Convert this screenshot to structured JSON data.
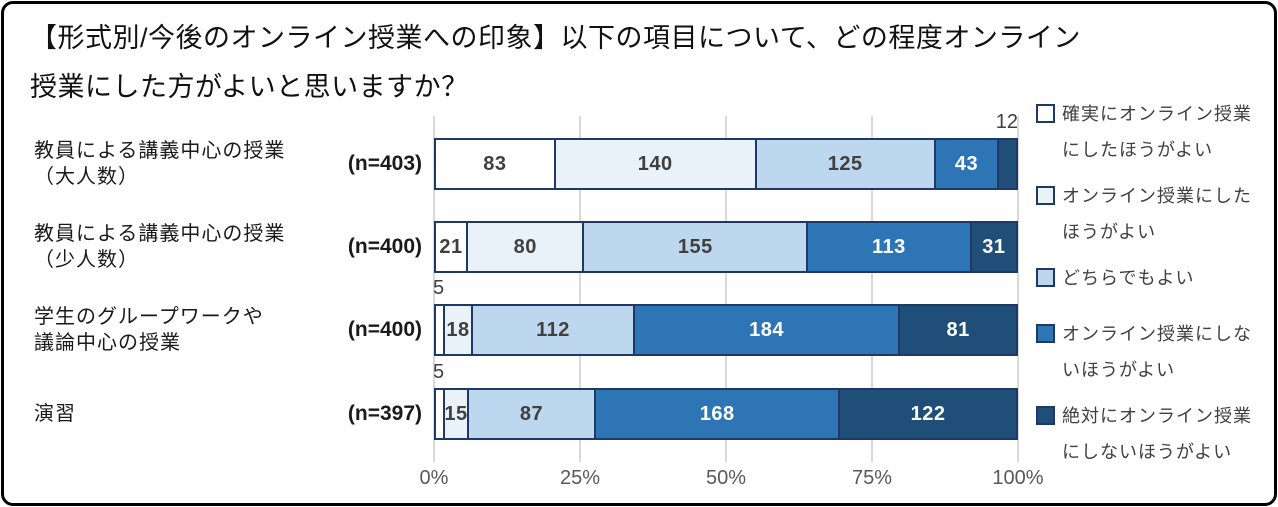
{
  "title": {
    "text": "【形式別/今後のオンライン授業への印象】以下の項目について、どの程度オンライン\n授業にした方がよいと思いますか？"
  },
  "colors": {
    "bar_border": "#1F3864",
    "gridline": "#D9D9D9",
    "value_label_dark": "#404040",
    "value_label_light": "#FFFFFF",
    "axis_text": "#595959",
    "title_text": "#111111",
    "category_text": "#1A1A1A",
    "legend_text": "#404040",
    "frame_border": "#000000"
  },
  "legend": {
    "items": [
      {
        "label": "確実にオンライン授業\nにしたほうがよい",
        "color": "#FFFFFF"
      },
      {
        "label": "オンライン授業にした\nほうがよい",
        "color": "#E9F1F9"
      },
      {
        "label": "どちらでもよい",
        "color": "#BDD7EE"
      },
      {
        "label": "オンライン授業にしな\nいほうがよい",
        "color": "#2E75B6"
      },
      {
        "label": "絶対にオンライン授業\nにしないほうがよい",
        "color": "#1F4E79"
      }
    ]
  },
  "chart_data": {
    "type": "bar",
    "stacked": true,
    "orientation": "horizontal",
    "x_axis": {
      "ticks": [
        "0%",
        "25%",
        "50%",
        "75%",
        "100%"
      ],
      "range_percent": [
        0,
        100
      ],
      "grid": true
    },
    "legend_position": "right",
    "categories": [
      {
        "label": "教員による講義中心の授業\n（大人数）",
        "n_label": "(n=403)",
        "n": 403,
        "values": [
          83,
          140,
          125,
          43,
          12
        ],
        "outside_label_indices": [
          4
        ]
      },
      {
        "label": "教員による講義中心の授業\n（少人数）",
        "n_label": "(n=400)",
        "n": 400,
        "values": [
          21,
          80,
          155,
          113,
          31
        ],
        "outside_label_indices": []
      },
      {
        "label": "学生のグループワークや\n議論中心の授業",
        "n_label": "(n=400)",
        "n": 400,
        "values": [
          5,
          18,
          112,
          184,
          81
        ],
        "outside_label_indices": [
          0
        ]
      },
      {
        "label": "演習",
        "n_label": "(n=397)",
        "n": 397,
        "values": [
          5,
          15,
          87,
          168,
          122
        ],
        "outside_label_indices": [
          0
        ]
      }
    ],
    "series": [
      {
        "name": "確実にオンライン授業にしたほうがよい",
        "color": "#FFFFFF",
        "values": [
          83,
          21,
          5,
          5
        ]
      },
      {
        "name": "オンライン授業にしたほうがよい",
        "color": "#E9F1F9",
        "values": [
          140,
          80,
          18,
          15
        ]
      },
      {
        "name": "どちらでもよい",
        "color": "#BDD7EE",
        "values": [
          125,
          155,
          112,
          87
        ]
      },
      {
        "name": "オンライン授業にしないほうがよい",
        "color": "#2E75B6",
        "values": [
          43,
          113,
          184,
          168
        ]
      },
      {
        "name": "絶対にオンライン授業にしないほうがよい",
        "color": "#1F4E79",
        "values": [
          12,
          31,
          81,
          122
        ]
      }
    ]
  }
}
